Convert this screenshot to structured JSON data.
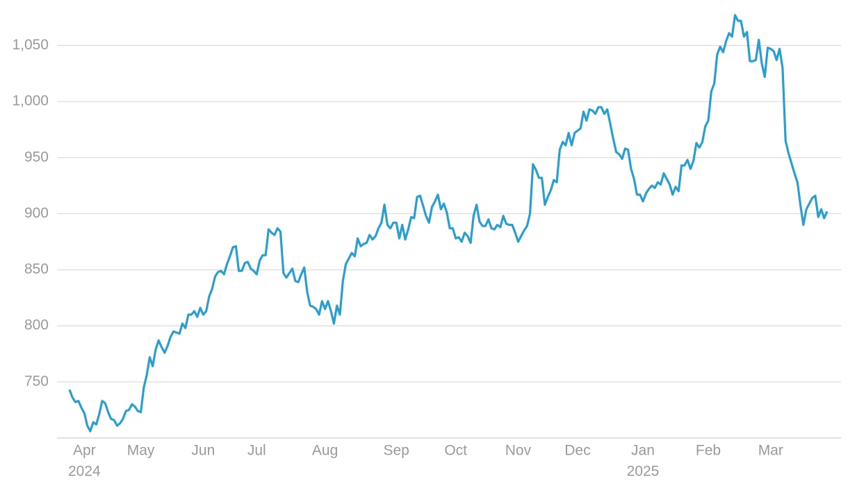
{
  "chart_data": {
    "type": "line",
    "categories": [
      null,
      null,
      null,
      null,
      null,
      [
        "Apr",
        "2024"
      ],
      null,
      null,
      null,
      null,
      null,
      null,
      null,
      null,
      null,
      null,
      null,
      null,
      null,
      null,
      null,
      null,
      null,
      null,
      "May",
      null,
      null,
      null,
      null,
      null,
      null,
      null,
      null,
      null,
      null,
      null,
      null,
      null,
      null,
      null,
      null,
      null,
      null,
      null,
      null,
      "Jun",
      null,
      null,
      null,
      null,
      null,
      null,
      null,
      null,
      null,
      null,
      null,
      null,
      null,
      null,
      null,
      null,
      null,
      "Jul",
      null,
      null,
      null,
      null,
      null,
      null,
      null,
      null,
      null,
      null,
      null,
      null,
      null,
      null,
      null,
      null,
      null,
      null,
      null,
      null,
      null,
      null,
      "Aug",
      null,
      null,
      null,
      null,
      null,
      null,
      null,
      null,
      null,
      null,
      null,
      null,
      null,
      null,
      null,
      null,
      null,
      null,
      null,
      null,
      null,
      null,
      null,
      "Sep",
      null,
      null,
      null,
      null,
      null,
      null,
      null,
      null,
      null,
      null,
      null,
      null,
      null,
      null,
      null,
      null,
      null,
      null,
      null,
      "Oct",
      null,
      null,
      null,
      null,
      null,
      null,
      null,
      null,
      null,
      null,
      null,
      null,
      null,
      null,
      null,
      null,
      null,
      null,
      null,
      null,
      "Nov",
      null,
      null,
      null,
      null,
      null,
      null,
      null,
      null,
      null,
      null,
      null,
      null,
      null,
      null,
      null,
      null,
      null,
      null,
      null,
      "Dec",
      null,
      null,
      null,
      null,
      null,
      null,
      null,
      null,
      null,
      null,
      null,
      null,
      null,
      null,
      null,
      null,
      null,
      null,
      null,
      null,
      null,
      [
        "Jan",
        "2025"
      ],
      null,
      null,
      null,
      null,
      null,
      null,
      null,
      null,
      null,
      null,
      null,
      null,
      null,
      null,
      null,
      null,
      null,
      null,
      null,
      null,
      null,
      "Feb",
      null,
      null,
      null,
      null,
      null,
      null,
      null,
      null,
      null,
      null,
      null,
      null,
      null,
      null,
      null,
      null,
      null,
      null,
      null,
      null,
      "Mar",
      null,
      null,
      null,
      null,
      null,
      null,
      null,
      null,
      null,
      null,
      null,
      null,
      null,
      null,
      null,
      null,
      null,
      null,
      null
    ],
    "series": [
      {
        "name": null,
        "color": "#2a9fcf",
        "values": [
          743,
          736,
          732,
          733,
          727,
          722,
          711,
          706,
          714,
          712,
          721,
          733,
          731,
          723,
          717,
          716,
          711,
          713,
          717,
          724,
          725,
          730,
          728,
          724,
          723,
          745,
          756,
          772,
          764,
          779,
          787,
          781,
          776,
          782,
          790,
          795,
          794,
          793,
          802,
          798,
          810,
          810,
          813,
          808,
          816,
          810,
          813,
          826,
          833,
          844,
          848,
          849,
          846,
          855,
          862,
          870,
          871,
          849,
          849,
          856,
          857,
          851,
          849,
          846,
          858,
          863,
          863,
          886,
          883,
          881,
          887,
          884,
          847,
          843,
          847,
          851,
          840,
          839,
          846,
          852,
          830,
          818,
          817,
          815,
          810,
          822,
          815,
          822,
          813,
          802,
          818,
          810,
          840,
          855,
          860,
          865,
          862,
          878,
          871,
          873,
          874,
          881,
          877,
          880,
          887,
          892,
          908,
          890,
          887,
          892,
          892,
          878,
          890,
          877,
          886,
          897,
          896,
          915,
          916,
          907,
          898,
          892,
          906,
          911,
          917,
          904,
          909,
          901,
          887,
          887,
          878,
          879,
          875,
          883,
          880,
          874,
          898,
          908,
          893,
          889,
          889,
          895,
          887,
          886,
          890,
          888,
          898,
          891,
          890,
          890,
          883,
          875,
          880,
          885,
          889,
          900,
          944,
          939,
          932,
          932,
          908,
          915,
          921,
          930,
          928,
          957,
          964,
          961,
          972,
          961,
          972,
          974,
          976,
          991,
          983,
          993,
          992,
          989,
          995,
          995,
          989,
          993,
          980,
          967,
          955,
          953,
          949,
          958,
          957,
          940,
          931,
          917,
          917,
          911,
          918,
          922,
          925,
          923,
          928,
          926,
          936,
          931,
          926,
          917,
          924,
          920,
          943,
          943,
          948,
          940,
          947,
          963,
          959,
          964,
          978,
          983,
          1009,
          1016,
          1042,
          1049,
          1044,
          1054,
          1061,
          1058,
          1077,
          1072,
          1072,
          1058,
          1062,
          1036,
          1036,
          1037,
          1055,
          1034,
          1022,
          1048,
          1047,
          1045,
          1037,
          1047,
          1030,
          965,
          954,
          945,
          936,
          928,
          908,
          890,
          904,
          909,
          914,
          916,
          897,
          904,
          896,
          902
        ]
      }
    ],
    "ylim": [
      700,
      1085
    ],
    "yticks": [
      {
        "value": 750,
        "label": "750"
      },
      {
        "value": 800,
        "label": "800"
      },
      {
        "value": 850,
        "label": "850"
      },
      {
        "value": 900,
        "label": "900"
      },
      {
        "value": 950,
        "label": "950"
      },
      {
        "value": 1000,
        "label": "1,000"
      },
      {
        "value": 1050,
        "label": "1,050"
      }
    ],
    "grid": true
  }
}
